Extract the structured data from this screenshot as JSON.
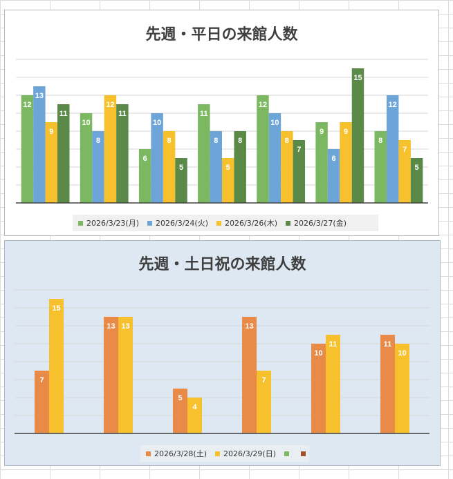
{
  "charts": [
    {
      "id": "weekday",
      "title": "先週・平日の来館人数",
      "colors": [
        "#7cb862",
        "#6ea5d9",
        "#f7c12e",
        "#5b8a48"
      ],
      "legend": [
        {
          "label": "2026/3/23(月)"
        },
        {
          "label": "2026/3/24(火)"
        },
        {
          "label": "2026/3/26(木)"
        },
        {
          "label": "2026/3/27(金)"
        }
      ]
    },
    {
      "id": "weekend",
      "title": "先週・土日祝の来館人数",
      "colors": [
        "#e88a48",
        "#f7c12e",
        "#7cb862",
        "#a0522d"
      ],
      "legend": [
        {
          "label": "2026/3/28(土)"
        },
        {
          "label": "2026/3/29(日)"
        },
        {
          "label": ""
        },
        {
          "label": ""
        }
      ]
    }
  ],
  "chart_data": [
    {
      "type": "bar",
      "title": "先週・平日の来館人数",
      "categories": [
        "",
        "",
        "",
        "",
        "",
        "",
        ""
      ],
      "ylim": [
        0,
        16
      ],
      "grid": true,
      "legend_position": "bottom",
      "series": [
        {
          "name": "2026/3/23(月)",
          "values": [
            12,
            10,
            6,
            11,
            12,
            9,
            8
          ]
        },
        {
          "name": "2026/3/24(火)",
          "values": [
            13,
            8,
            10,
            8,
            10,
            6,
            12
          ]
        },
        {
          "name": "2026/3/26(木)",
          "values": [
            9,
            12,
            8,
            5,
            8,
            9,
            7
          ]
        },
        {
          "name": "2026/3/27(金)",
          "values": [
            11,
            11,
            5,
            8,
            7,
            15,
            5
          ]
        }
      ]
    },
    {
      "type": "bar",
      "title": "先週・土日祝の来館人数",
      "categories": [
        "",
        "",
        "",
        "",
        "",
        ""
      ],
      "ylim": [
        0,
        16
      ],
      "grid": true,
      "legend_position": "bottom",
      "series": [
        {
          "name": "2026/3/28(土)",
          "values": [
            7,
            13,
            5,
            13,
            10,
            11
          ]
        },
        {
          "name": "2026/3/29(日)",
          "values": [
            15,
            13,
            4,
            7,
            11,
            10
          ]
        }
      ]
    }
  ]
}
